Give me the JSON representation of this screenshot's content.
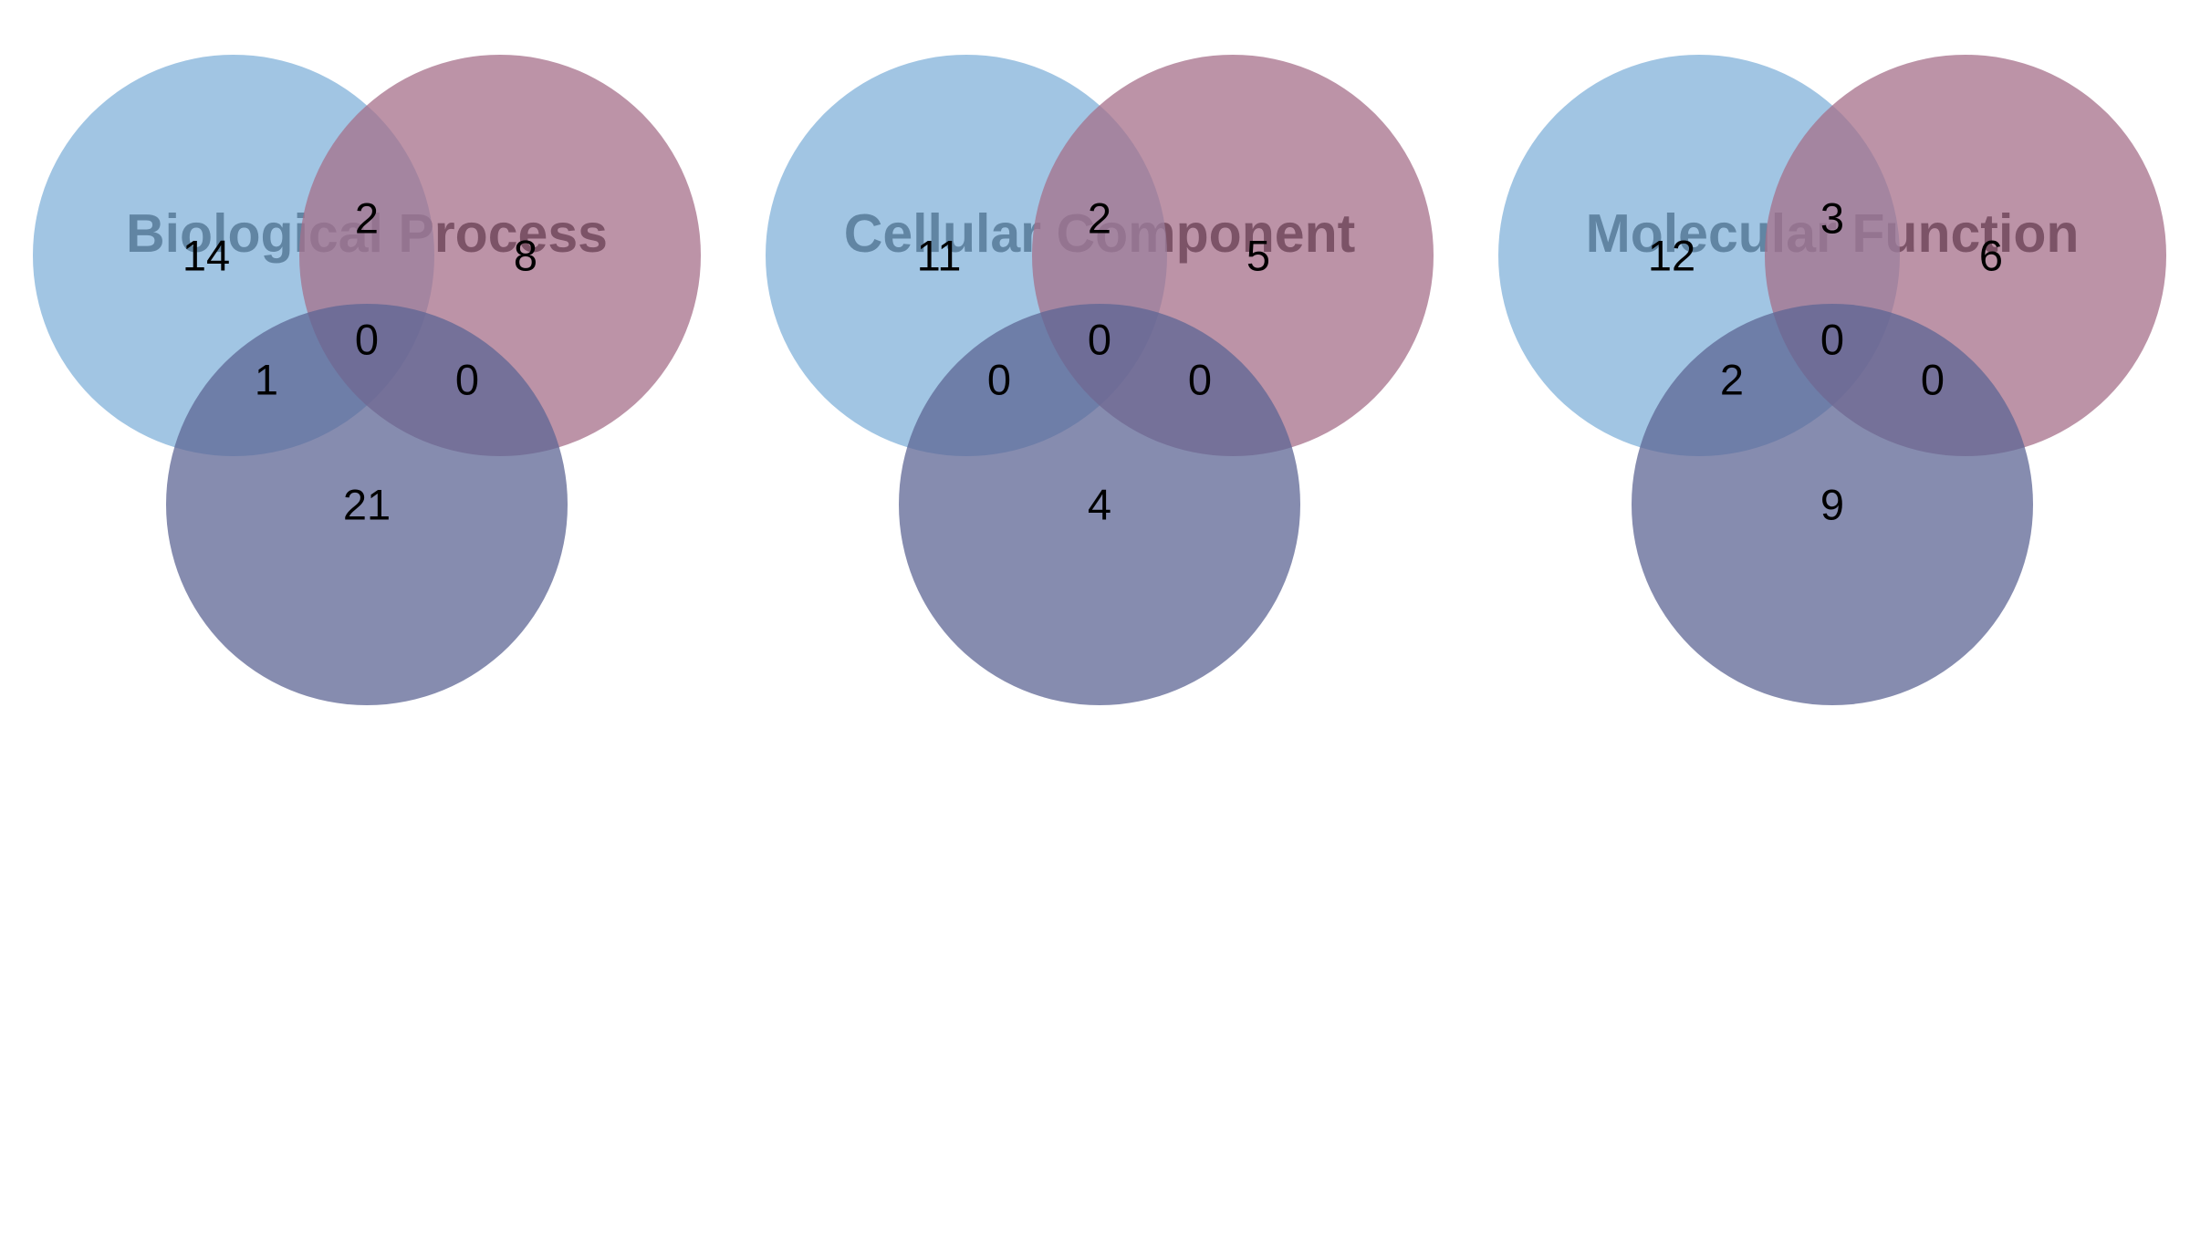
{
  "colors": {
    "set_a": "#81b1d9",
    "set_b": "#a56f8a",
    "set_c": "#5e6694",
    "opacity": 0.75
  },
  "panels": [
    {
      "title": "Biological Process",
      "counts": {
        "a_only": "14",
        "b_only": "8",
        "c_only": "21",
        "ab": "2",
        "ac": "1",
        "bc": "0",
        "abc": "0"
      }
    },
    {
      "title": "Cellular Component",
      "counts": {
        "a_only": "11",
        "b_only": "5",
        "c_only": "4",
        "ab": "2",
        "ac": "0",
        "bc": "0",
        "abc": "0"
      }
    },
    {
      "title": "Molecular Function",
      "counts": {
        "a_only": "12",
        "b_only": "6",
        "c_only": "9",
        "ab": "3",
        "ac": "2",
        "bc": "0",
        "abc": "0"
      }
    }
  ]
}
